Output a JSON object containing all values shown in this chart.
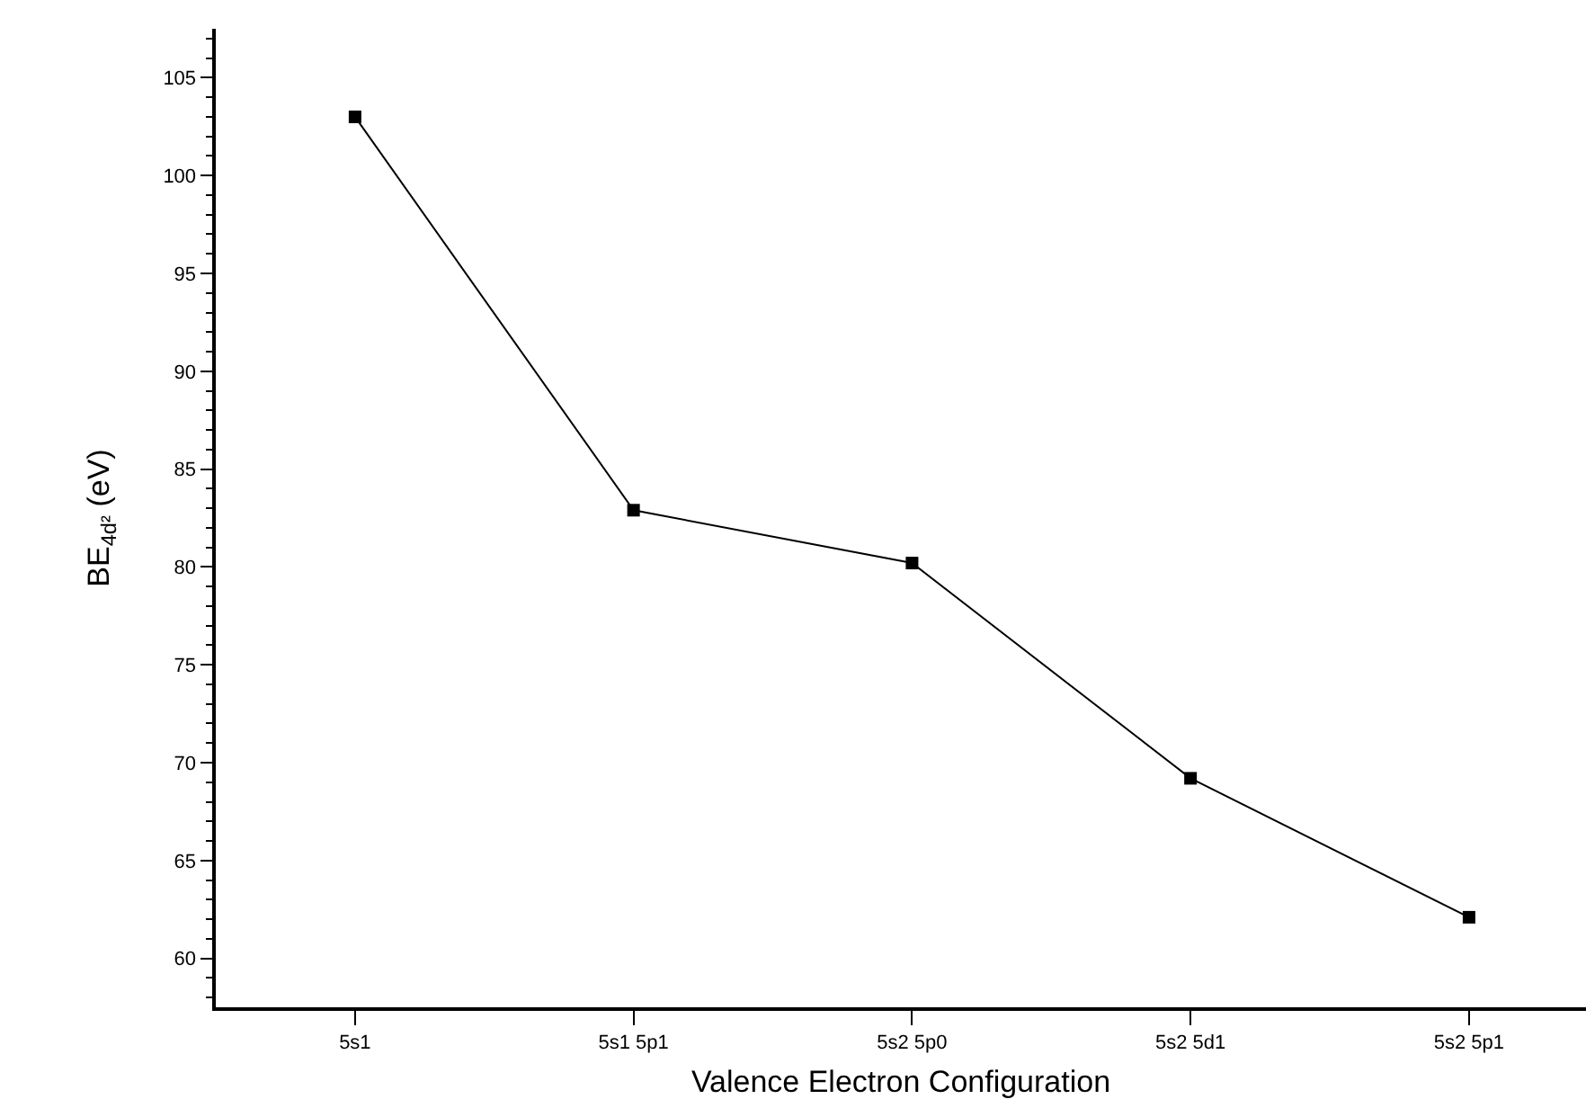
{
  "chart_data": {
    "type": "line",
    "xlabel": "Valence Electron Configuration",
    "ylabel": "BE$_{4d²}$ (eV)",
    "categories": [
      "5s1",
      "5s1 5p1",
      "5s2 5p0",
      "5s2 5d1",
      "5s2 5p1"
    ],
    "series": [
      {
        "color": "#000000",
        "values": [
          103.0,
          82.9,
          80.2,
          69.2,
          62.1
        ]
      }
    ],
    "ylim": [
      57.5,
      107.5
    ],
    "yticks": [
      60,
      65,
      70,
      75,
      80,
      85,
      90,
      95,
      100,
      105
    ],
    "grid": false,
    "marker": "square",
    "line_style": "solid"
  }
}
